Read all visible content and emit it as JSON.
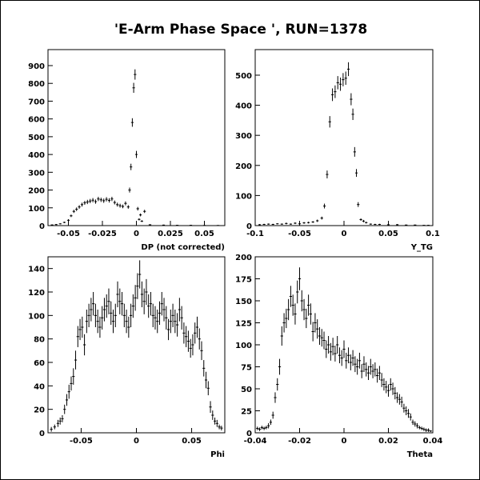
{
  "title": "'E-Arm Phase Space ', RUN=1378",
  "colors": {
    "background": "#ffffff",
    "axes": "#000000",
    "markers": "#000000"
  },
  "chart_data": [
    {
      "type": "scatter",
      "xlabel": "DP (not corrected)",
      "ylabel": "",
      "xlim": [
        -0.065,
        0.065
      ],
      "ylim": [
        0,
        990
      ],
      "xticks": [
        -0.05,
        -0.025,
        0,
        0.025,
        0.05
      ],
      "xtick_labels": [
        "-0.05",
        "-0.025",
        "0",
        "0.025",
        "0.05"
      ],
      "yticks": [
        0,
        100,
        200,
        300,
        400,
        500,
        600,
        700,
        800,
        900
      ],
      "ytick_labels": [
        "0",
        "100",
        "200",
        "300",
        "400",
        "500",
        "600",
        "700",
        "800",
        "900"
      ],
      "grid": false,
      "error_bars": true,
      "x": [
        -0.062,
        -0.059,
        -0.056,
        -0.053,
        -0.05,
        -0.048,
        -0.046,
        -0.044,
        -0.042,
        -0.04,
        -0.038,
        -0.036,
        -0.034,
        -0.032,
        -0.03,
        -0.028,
        -0.026,
        -0.024,
        -0.022,
        -0.02,
        -0.018,
        -0.016,
        -0.014,
        -0.012,
        -0.01,
        -0.008,
        -0.006,
        -0.005,
        -0.004,
        -0.003,
        -0.002,
        -0.001,
        0,
        0.001,
        0.002,
        0.003,
        0.004,
        0.006,
        0.01,
        0.02,
        0.03,
        0.04,
        0.05,
        0.06
      ],
      "y": [
        4,
        6,
        10,
        18,
        30,
        55,
        80,
        92,
        105,
        118,
        128,
        133,
        138,
        143,
        135,
        150,
        145,
        140,
        148,
        142,
        150,
        130,
        118,
        112,
        108,
        125,
        105,
        200,
        330,
        580,
        775,
        850,
        400,
        95,
        35,
        60,
        25,
        80,
        5,
        3,
        2,
        2,
        1,
        1
      ],
      "yerr": [
        2,
        3,
        3,
        4,
        6,
        7,
        9,
        10,
        10,
        11,
        11,
        12,
        12,
        12,
        12,
        12,
        12,
        12,
        12,
        12,
        12,
        11,
        11,
        11,
        10,
        11,
        10,
        14,
        18,
        24,
        28,
        29,
        20,
        10,
        6,
        8,
        5,
        9,
        2,
        2,
        1,
        1,
        1,
        1
      ]
    },
    {
      "type": "scatter",
      "xlabel": "Y_TG",
      "ylabel": "",
      "xlim": [
        -0.1,
        0.1
      ],
      "ylim": [
        0,
        585
      ],
      "xticks": [
        -0.1,
        -0.05,
        0,
        0.05,
        0.1
      ],
      "xtick_labels": [
        "-0.1",
        "-0.05",
        "0",
        "0.05",
        "0.1"
      ],
      "yticks": [
        0,
        100,
        200,
        300,
        400,
        500
      ],
      "ytick_labels": [
        "0",
        "100",
        "200",
        "300",
        "400",
        "500"
      ],
      "grid": false,
      "error_bars": true,
      "x": [
        -0.095,
        -0.09,
        -0.085,
        -0.08,
        -0.075,
        -0.07,
        -0.065,
        -0.06,
        -0.055,
        -0.05,
        -0.045,
        -0.04,
        -0.035,
        -0.03,
        -0.025,
        -0.022,
        -0.019,
        -0.016,
        -0.013,
        -0.01,
        -0.007,
        -0.004,
        -0.001,
        0.002,
        0.005,
        0.008,
        0.01,
        0.012,
        0.014,
        0.016,
        0.019,
        0.022,
        0.025,
        0.03,
        0.035,
        0.04,
        0.05,
        0.06,
        0.07,
        0.08,
        0.09,
        0.095
      ],
      "y": [
        3,
        4,
        5,
        4,
        6,
        5,
        7,
        5,
        8,
        6,
        9,
        10,
        12,
        16,
        25,
        65,
        170,
        345,
        435,
        445,
        475,
        470,
        485,
        490,
        520,
        420,
        370,
        245,
        175,
        70,
        20,
        15,
        10,
        5,
        4,
        4,
        3,
        3,
        2,
        2,
        1,
        1
      ],
      "yerr": [
        2,
        2,
        2,
        2,
        2,
        2,
        3,
        2,
        3,
        2,
        3,
        3,
        3,
        4,
        5,
        8,
        13,
        19,
        21,
        21,
        22,
        22,
        22,
        22,
        23,
        20,
        19,
        16,
        13,
        8,
        4,
        4,
        3,
        2,
        2,
        2,
        2,
        2,
        1,
        1,
        1,
        1
      ]
    },
    {
      "type": "scatter",
      "xlabel": "Phi",
      "ylabel": "",
      "xlim": [
        -0.08,
        0.08
      ],
      "ylim": [
        0,
        150
      ],
      "xticks": [
        -0.05,
        0,
        0.05
      ],
      "xtick_labels": [
        "-0.05",
        "0",
        "0.05"
      ],
      "yticks": [
        0,
        20,
        40,
        60,
        80,
        100,
        120,
        140
      ],
      "ytick_labels": [
        "0",
        "20",
        "40",
        "60",
        "80",
        "100",
        "120",
        "140"
      ],
      "grid": false,
      "error_bars": true,
      "x": [
        -0.077,
        -0.074,
        -0.071,
        -0.069,
        -0.067,
        -0.065,
        -0.063,
        -0.061,
        -0.059,
        -0.057,
        -0.055,
        -0.053,
        -0.051,
        -0.049,
        -0.047,
        -0.045,
        -0.043,
        -0.041,
        -0.039,
        -0.037,
        -0.035,
        -0.033,
        -0.031,
        -0.029,
        -0.027,
        -0.025,
        -0.023,
        -0.021,
        -0.019,
        -0.017,
        -0.015,
        -0.013,
        -0.011,
        -0.009,
        -0.007,
        -0.005,
        -0.003,
        -0.001,
        0.001,
        0.003,
        0.005,
        0.007,
        0.009,
        0.011,
        0.013,
        0.015,
        0.017,
        0.019,
        0.021,
        0.023,
        0.025,
        0.027,
        0.029,
        0.031,
        0.033,
        0.035,
        0.037,
        0.039,
        0.041,
        0.043,
        0.045,
        0.047,
        0.049,
        0.051,
        0.053,
        0.055,
        0.057,
        0.059,
        0.061,
        0.063,
        0.065,
        0.067,
        0.069,
        0.071,
        0.073,
        0.075,
        0.077
      ],
      "y": [
        3,
        5,
        8,
        10,
        12,
        20,
        28,
        35,
        42,
        48,
        62,
        82,
        88,
        90,
        75,
        95,
        100,
        105,
        110,
        100,
        95,
        90,
        98,
        105,
        108,
        112,
        102,
        95,
        100,
        118,
        112,
        110,
        100,
        95,
        90,
        100,
        108,
        115,
        125,
        135,
        118,
        112,
        120,
        108,
        110,
        100,
        98,
        95,
        102,
        110,
        105,
        98,
        88,
        95,
        100,
        95,
        92,
        105,
        98,
        85,
        82,
        78,
        72,
        75,
        85,
        90,
        80,
        70,
        55,
        45,
        38,
        22,
        15,
        10,
        8,
        5,
        4
      ],
      "yerr": [
        2,
        2,
        3,
        3,
        3,
        4,
        5,
        6,
        6,
        7,
        8,
        9,
        9,
        9,
        9,
        10,
        10,
        10,
        10,
        10,
        10,
        9,
        10,
        10,
        10,
        11,
        10,
        10,
        10,
        11,
        11,
        10,
        10,
        10,
        9,
        10,
        10,
        11,
        11,
        12,
        11,
        11,
        11,
        10,
        10,
        10,
        10,
        10,
        10,
        10,
        10,
        10,
        9,
        10,
        10,
        10,
        10,
        10,
        10,
        9,
        9,
        9,
        8,
        9,
        9,
        9,
        9,
        8,
        7,
        7,
        6,
        5,
        4,
        3,
        3,
        2,
        2
      ]
    },
    {
      "type": "scatter",
      "xlabel": "Theta",
      "ylabel": "",
      "xlim": [
        -0.04,
        0.04
      ],
      "ylim": [
        0,
        200
      ],
      "xticks": [
        -0.04,
        -0.02,
        0,
        0.02,
        0.04
      ],
      "xtick_labels": [
        "-0.04",
        "-0.02",
        "0",
        "0.02",
        "0.04"
      ],
      "yticks": [
        0,
        25,
        50,
        75,
        100,
        125,
        150,
        175,
        200
      ],
      "ytick_labels": [
        "0",
        "25",
        "50",
        "75",
        "100",
        "125",
        "150",
        "175",
        "200"
      ],
      "grid": false,
      "error_bars": true,
      "x": [
        -0.039,
        -0.038,
        -0.037,
        -0.036,
        -0.035,
        -0.034,
        -0.033,
        -0.032,
        -0.031,
        -0.03,
        -0.029,
        -0.028,
        -0.027,
        -0.026,
        -0.025,
        -0.024,
        -0.023,
        -0.022,
        -0.021,
        -0.02,
        -0.019,
        -0.018,
        -0.017,
        -0.016,
        -0.015,
        -0.014,
        -0.013,
        -0.012,
        -0.011,
        -0.01,
        -0.009,
        -0.008,
        -0.007,
        -0.006,
        -0.005,
        -0.004,
        -0.003,
        -0.002,
        -0.001,
        0,
        0.001,
        0.002,
        0.003,
        0.004,
        0.005,
        0.006,
        0.007,
        0.008,
        0.009,
        0.01,
        0.011,
        0.012,
        0.013,
        0.014,
        0.015,
        0.016,
        0.017,
        0.018,
        0.019,
        0.02,
        0.021,
        0.022,
        0.023,
        0.024,
        0.025,
        0.026,
        0.027,
        0.028,
        0.029,
        0.03,
        0.031,
        0.032,
        0.033,
        0.034,
        0.035,
        0.036,
        0.037,
        0.038,
        0.039
      ],
      "y": [
        5,
        4,
        6,
        5,
        6,
        8,
        12,
        20,
        40,
        55,
        75,
        110,
        125,
        130,
        140,
        155,
        145,
        135,
        160,
        175,
        150,
        140,
        130,
        145,
        135,
        115,
        125,
        118,
        110,
        108,
        105,
        95,
        100,
        92,
        98,
        90,
        100,
        88,
        85,
        95,
        82,
        88,
        80,
        85,
        78,
        75,
        82,
        70,
        78,
        72,
        68,
        75,
        70,
        72,
        65,
        68,
        60,
        55,
        52,
        48,
        55,
        50,
        45,
        40,
        38,
        35,
        28,
        25,
        22,
        18,
        12,
        10,
        8,
        6,
        5,
        4,
        3,
        3,
        2
      ],
      "yerr": [
        2,
        2,
        2,
        2,
        2,
        3,
        3,
        4,
        6,
        7,
        9,
        11,
        11,
        11,
        12,
        12,
        12,
        12,
        13,
        13,
        12,
        12,
        11,
        12,
        12,
        11,
        11,
        11,
        10,
        10,
        10,
        10,
        10,
        10,
        10,
        9,
        10,
        9,
        9,
        10,
        9,
        9,
        9,
        9,
        9,
        9,
        9,
        8,
        9,
        8,
        8,
        9,
        8,
        8,
        8,
        8,
        8,
        7,
        7,
        7,
        7,
        7,
        7,
        6,
        6,
        6,
        5,
        5,
        5,
        4,
        3,
        3,
        3,
        2,
        2,
        2,
        2,
        2,
        1
      ]
    }
  ]
}
